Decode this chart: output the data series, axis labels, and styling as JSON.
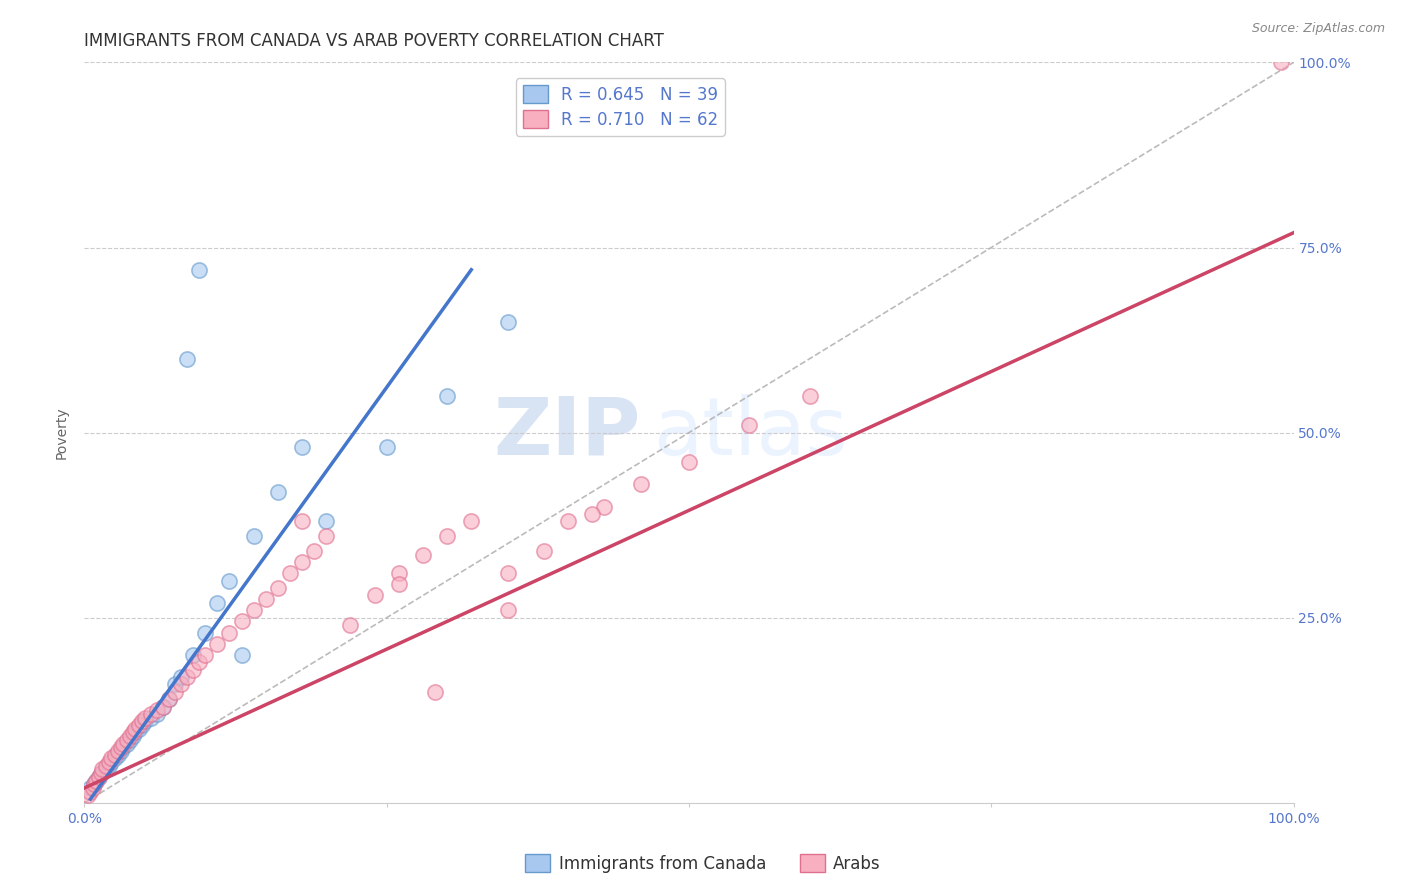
{
  "title": "IMMIGRANTS FROM CANADA VS ARAB POVERTY CORRELATION CHART",
  "source": "Source: ZipAtlas.com",
  "ylabel": "Poverty",
  "xlim": [
    0,
    1
  ],
  "ylim": [
    0,
    1
  ],
  "xtick_positions": [
    0,
    0.25,
    0.5,
    0.75,
    1.0
  ],
  "xtick_labels": [
    "0.0%",
    "",
    "",
    "",
    "100.0%"
  ],
  "yticks_right": [
    0.25,
    0.5,
    0.75,
    1.0
  ],
  "ytick_labels_right": [
    "25.0%",
    "50.0%",
    "75.0%",
    "100.0%"
  ],
  "blue_fill_color": "#A8C8F0",
  "blue_edge_color": "#6699CC",
  "pink_fill_color": "#F8B0C0",
  "pink_edge_color": "#E07090",
  "blue_line_color": "#4477CC",
  "pink_line_color": "#CC4466",
  "legend_R1": "R = 0.645",
  "legend_N1": "N = 39",
  "legend_R2": "R = 0.710",
  "legend_N2": "N = 62",
  "series1_label": "Immigrants from Canada",
  "series2_label": "Arabs",
  "watermark_zip": "ZIP",
  "watermark_atlas": "atlas",
  "blue_scatter_x": [
    0.005,
    0.008,
    0.01,
    0.012,
    0.015,
    0.018,
    0.02,
    0.022,
    0.025,
    0.028,
    0.03,
    0.032,
    0.035,
    0.038,
    0.04,
    0.042,
    0.045,
    0.048,
    0.05,
    0.055,
    0.06,
    0.065,
    0.07,
    0.075,
    0.08,
    0.09,
    0.1,
    0.11,
    0.12,
    0.14,
    0.16,
    0.18,
    0.2,
    0.25,
    0.3,
    0.35,
    0.13,
    0.095,
    0.085
  ],
  "blue_scatter_y": [
    0.02,
    0.025,
    0.03,
    0.035,
    0.04,
    0.045,
    0.05,
    0.055,
    0.06,
    0.065,
    0.07,
    0.075,
    0.08,
    0.085,
    0.09,
    0.095,
    0.1,
    0.105,
    0.11,
    0.115,
    0.12,
    0.13,
    0.14,
    0.16,
    0.17,
    0.2,
    0.23,
    0.27,
    0.3,
    0.36,
    0.42,
    0.48,
    0.38,
    0.48,
    0.55,
    0.65,
    0.2,
    0.72,
    0.6
  ],
  "pink_scatter_x": [
    0.003,
    0.005,
    0.007,
    0.008,
    0.01,
    0.012,
    0.014,
    0.015,
    0.018,
    0.02,
    0.022,
    0.025,
    0.028,
    0.03,
    0.032,
    0.035,
    0.038,
    0.04,
    0.042,
    0.045,
    0.048,
    0.05,
    0.055,
    0.06,
    0.065,
    0.07,
    0.075,
    0.08,
    0.085,
    0.09,
    0.095,
    0.1,
    0.11,
    0.12,
    0.13,
    0.14,
    0.15,
    0.16,
    0.17,
    0.18,
    0.19,
    0.2,
    0.22,
    0.24,
    0.26,
    0.28,
    0.3,
    0.32,
    0.35,
    0.38,
    0.4,
    0.43,
    0.46,
    0.5,
    0.55,
    0.6,
    0.35,
    0.42,
    0.26,
    0.18,
    0.99,
    0.29
  ],
  "pink_scatter_y": [
    0.01,
    0.015,
    0.02,
    0.025,
    0.03,
    0.035,
    0.04,
    0.045,
    0.05,
    0.055,
    0.06,
    0.065,
    0.07,
    0.075,
    0.08,
    0.085,
    0.09,
    0.095,
    0.1,
    0.105,
    0.11,
    0.115,
    0.12,
    0.125,
    0.13,
    0.14,
    0.15,
    0.16,
    0.17,
    0.18,
    0.19,
    0.2,
    0.215,
    0.23,
    0.245,
    0.26,
    0.275,
    0.29,
    0.31,
    0.325,
    0.34,
    0.36,
    0.24,
    0.28,
    0.31,
    0.335,
    0.36,
    0.38,
    0.31,
    0.34,
    0.38,
    0.4,
    0.43,
    0.46,
    0.51,
    0.55,
    0.26,
    0.39,
    0.295,
    0.38,
    1.0,
    0.15
  ],
  "blue_line_x": [
    0.005,
    0.32
  ],
  "blue_line_y": [
    0.005,
    0.72
  ],
  "pink_line_x": [
    0.0,
    1.0
  ],
  "pink_line_y": [
    0.02,
    0.77
  ],
  "ref_line_x": [
    0.0,
    1.0
  ],
  "ref_line_y": [
    0.0,
    1.0
  ],
  "title_fontsize": 12,
  "axis_label_fontsize": 10,
  "tick_fontsize": 10,
  "legend_fontsize": 12,
  "title_color": "#333333",
  "tick_color": "#5577CC",
  "grid_color": "#CCCCCC",
  "background_color": "#FFFFFF"
}
